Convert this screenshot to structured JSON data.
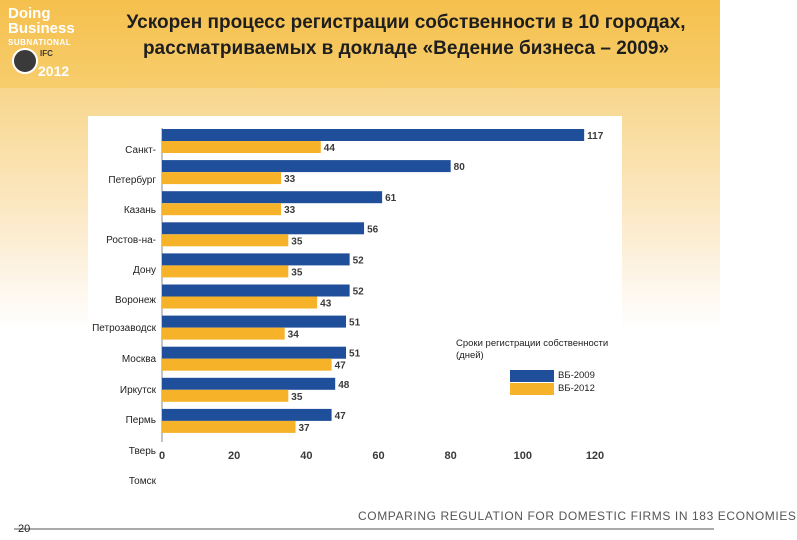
{
  "header": {
    "title_line1": "Ускорен процесс регистрации собственности в 10 городах,",
    "title_line2": "рассматриваемых в докладе «Ведение бизнеса – 2009»"
  },
  "logo": {
    "line1": "Doing",
    "line2": "Business",
    "line3": "SUBNATIONAL",
    "line4": "IFC",
    "year": "2012"
  },
  "city_labels": [
    "Санкт-",
    "Петербург",
    "Казань",
    "Ростов-на-",
    "Дону",
    "Воронеж",
    "Петрозаводск",
    "Москва",
    "Иркутск",
    "Пермь",
    "Тверь",
    "Томск"
  ],
  "chart_data": {
    "type": "bar",
    "orientation": "horizontal",
    "title": "Сроки регистрации собственности (дней)",
    "xlim": [
      0,
      120
    ],
    "xticks": [
      0,
      20,
      40,
      60,
      80,
      100,
      120
    ],
    "series": [
      {
        "name": "ВБ-2009",
        "color": "#1f4e9b",
        "values": [
          117,
          80,
          61,
          56,
          52,
          52,
          51,
          51,
          48,
          47
        ]
      },
      {
        "name": "ВБ-2012",
        "color": "#f6b32a",
        "values": [
          44,
          33,
          33,
          35,
          35,
          43,
          34,
          47,
          35,
          37
        ]
      }
    ]
  },
  "legend": {
    "title": "Сроки регистрации собственности (дней)",
    "label_2009": "ВБ-2009",
    "label_2012": "ВБ-2012"
  },
  "footer": {
    "text": "COMPARING REGULATION FOR DOMESTIC FIRMS IN 183 ECONOMIES",
    "slide_number": "20"
  }
}
